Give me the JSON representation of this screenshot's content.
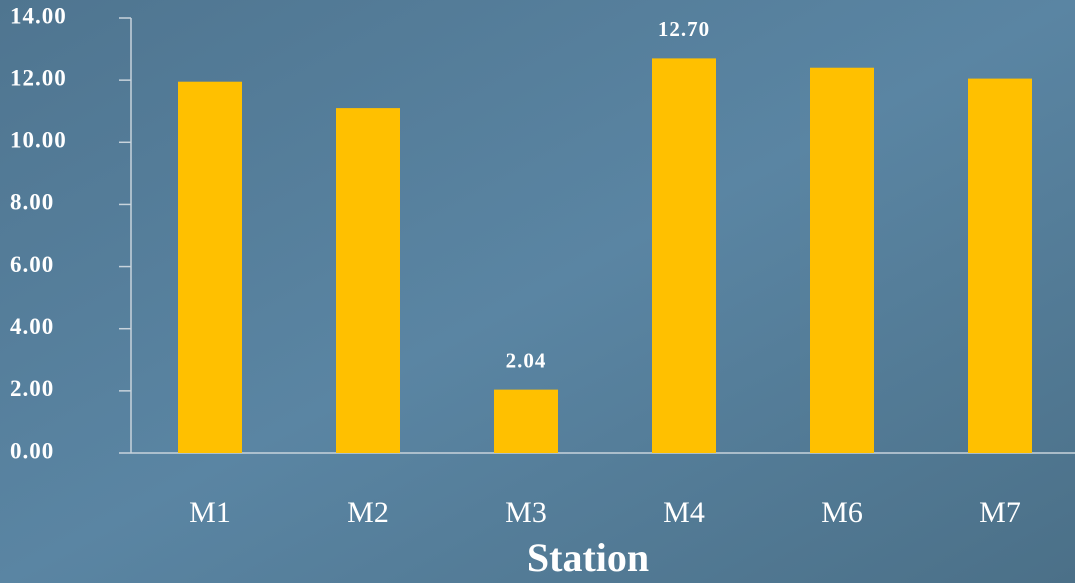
{
  "chart_data": {
    "type": "bar",
    "x_label": "Station",
    "categories": [
      "M1",
      "M2",
      "M3",
      "M4",
      "M6",
      "M7"
    ],
    "values": [
      11.95,
      11.1,
      2.04,
      12.7,
      12.4,
      12.05
    ],
    "value_labels": [
      null,
      null,
      "2.04",
      "12.70",
      null,
      null
    ],
    "color": "#ffc000",
    "ylim": [
      0,
      14
    ],
    "yticks": [
      {
        "value": 0,
        "label": "0.00"
      },
      {
        "value": 2,
        "label": "2.00"
      },
      {
        "value": 4,
        "label": "4.00"
      },
      {
        "value": 6,
        "label": "6.00"
      },
      {
        "value": 8,
        "label": "8.00"
      },
      {
        "value": 10,
        "label": "10.00"
      },
      {
        "value": 12,
        "label": "12.00"
      },
      {
        "value": 14,
        "label": "14.00"
      }
    ],
    "grid": false
  }
}
